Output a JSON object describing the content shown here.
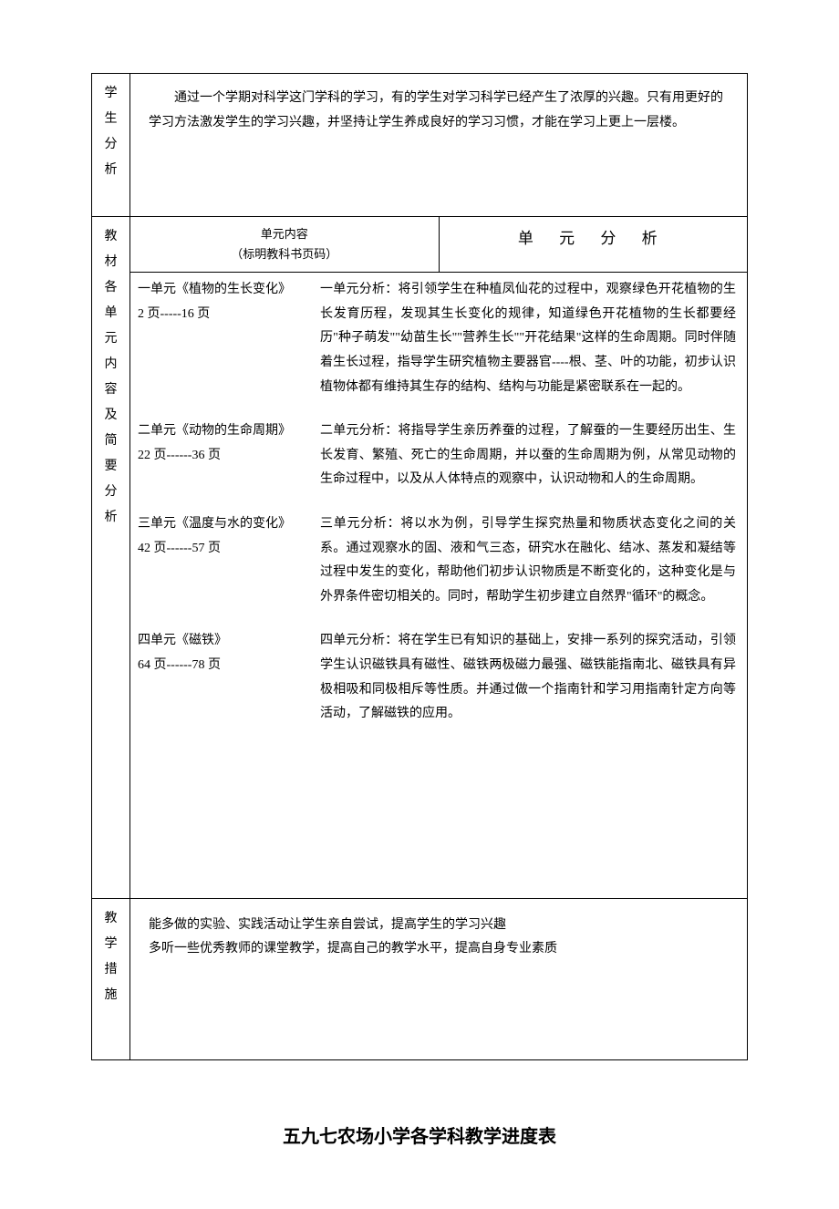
{
  "layout": {
    "page_bg": "#ffffff",
    "border_color": "#000000",
    "text_color": "#000000",
    "body_fontsize": 14,
    "title_fontsize": 20,
    "header_fontsize": 17
  },
  "sections": {
    "student_analysis": {
      "label": "学生分析",
      "content": "通过一个学期对科学这门学科的学习，有的学生对学习科学已经产生了浓厚的兴趣。只有用更好的学习方法激发学生的学习兴趣，并坚持让学生养成良好的学习习惯，才能在学习上更上一层楼。"
    },
    "unit_analysis": {
      "label": "教材各单元内容及简要分析",
      "header_left_line1": "单元内容",
      "header_left_line2": "（标明教科书页码）",
      "header_right": "单 元 分 析",
      "units": [
        {
          "title": "一单元《植物的生长变化》",
          "pages": "2 页-----16 页",
          "analysis": "一单元分析：将引领学生在种植凤仙花的过程中，观察绿色开花植物的生长发育历程，发现其生长变化的规律，知道绿色开花植物的生长都要经历\"种子萌发\"\"幼苗生长\"\"营养生长\"\"开花结果\"这样的生命周期。同时伴随着生长过程，指导学生研究植物主要器官----根、茎、叶的功能，初步认识植物体都有维持其生存的结构、结构与功能是紧密联系在一起的。"
        },
        {
          "title": "二单元《动物的生命周期》",
          "pages": "22 页------36 页",
          "analysis": "二单元分析：将指导学生亲历养蚕的过程，了解蚕的一生要经历出生、生长发育、繁殖、死亡的生命周期，并以蚕的生命周期为例，从常见动物的生命过程中，以及从人体特点的观察中，认识动物和人的生命周期。"
        },
        {
          "title": "三单元《温度与水的变化》",
          "pages": "42 页------57 页",
          "analysis": "三单元分析：将以水为例，引导学生探究热量和物质状态变化之间的关系。通过观察水的固、液和气三态，研究水在融化、结冰、蒸发和凝结等过程中发生的变化，帮助他们初步认识物质是不断变化的，这种变化是与外界条件密切相关的。同时，帮助学生初步建立自然界\"循环\"的概念。"
        },
        {
          "title": "四单元《磁铁》",
          "pages": "64 页------78 页",
          "analysis": "四单元分析：将在学生已有知识的基础上，安排一系列的探究活动，引领学生认识磁铁具有磁性、磁铁两极磁力最强、磁铁能指南北、磁铁具有异极相吸和同极相斥等性质。并通过做一个指南针和学习用指南针定方向等活动，了解磁铁的应用。"
        }
      ]
    },
    "measures": {
      "label": "教学措施",
      "line1": "能多做的实验、实践活动让学生亲自尝试，提高学生的学习兴趣",
      "line2": "多听一些优秀教师的课堂教学，提高自己的教学水平，提高自身专业素质"
    }
  },
  "bottom_title": "五九七农场小学各学科教学进度表"
}
